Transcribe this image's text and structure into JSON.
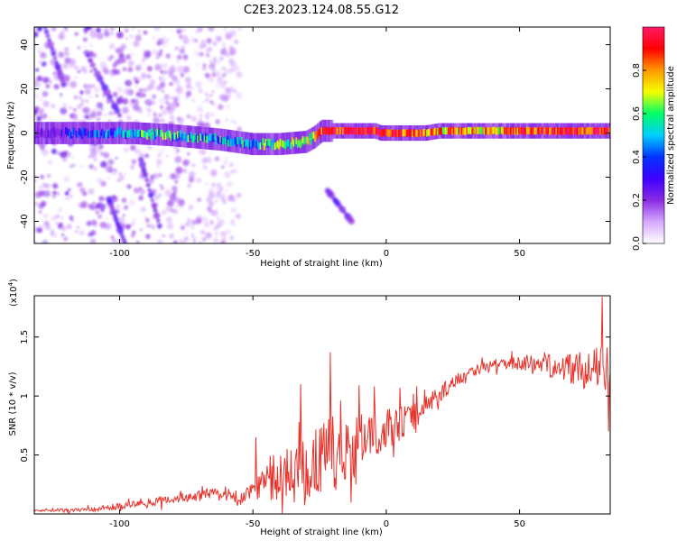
{
  "title": "C2E3.2023.124.08.55.G12",
  "colors": {
    "snr_line": "#e8332c",
    "spectrogram_faint": "#c79bff",
    "spectrogram_core": "#3a00e0",
    "axis": "#000000"
  },
  "chart_data": [
    {
      "type": "heatmap",
      "xlabel": "Height of straight line (km)",
      "ylabel": "Frequency (Hz)",
      "xlim": [
        -132,
        84
      ],
      "ylim": [
        -50,
        48
      ],
      "xticks": [
        -100,
        -50,
        0,
        50
      ],
      "yticks": [
        -40,
        -20,
        0,
        20,
        40
      ],
      "grid": false,
      "colorbar": {
        "label": "Normalized spectral amplitude",
        "range": [
          0.0,
          1.0
        ],
        "ticks": [
          "0.0",
          "0.2",
          "0.4",
          "0.6",
          "0.8"
        ],
        "stops": [
          "#ffffff",
          "#d6a8ff",
          "#8a2be2",
          "#3d00ff",
          "#0033ff",
          "#00cfff",
          "#00ff66",
          "#f5ff00",
          "#ff9900",
          "#ff0000",
          "#ff1a66"
        ]
      },
      "band_center": [
        {
          "x": -132,
          "y": 0
        },
        {
          "x": -112,
          "y": 0
        },
        {
          "x": -95,
          "y": 0
        },
        {
          "x": -80,
          "y": -1
        },
        {
          "x": -62,
          "y": -3
        },
        {
          "x": -50,
          "y": -5
        },
        {
          "x": -40,
          "y": -5
        },
        {
          "x": -30,
          "y": -4
        },
        {
          "x": -27,
          "y": -2
        },
        {
          "x": -24,
          "y": 1
        },
        {
          "x": -10,
          "y": 1
        },
        {
          "x": -4,
          "y": 1
        },
        {
          "x": -2,
          "y": 0
        },
        {
          "x": 15,
          "y": 0
        },
        {
          "x": 20,
          "y": 1
        },
        {
          "x": 84,
          "y": 1
        }
      ],
      "band_intensity": [
        {
          "x": -132,
          "v": 0.15
        },
        {
          "x": -112,
          "v": 0.35
        },
        {
          "x": -95,
          "v": 0.5
        },
        {
          "x": -75,
          "v": 0.55
        },
        {
          "x": -60,
          "v": 0.45
        },
        {
          "x": -45,
          "v": 0.55
        },
        {
          "x": -30,
          "v": 0.6
        },
        {
          "x": -24,
          "v": 0.85
        },
        {
          "x": -10,
          "v": 0.95
        },
        {
          "x": 0,
          "v": 0.95
        },
        {
          "x": 20,
          "v": 0.8
        },
        {
          "x": 40,
          "v": 0.75
        },
        {
          "x": 60,
          "v": 0.9
        },
        {
          "x": 84,
          "v": 0.9
        }
      ],
      "noise_region": {
        "x_from": -132,
        "x_to": -55,
        "amplitude": 0.25
      },
      "streaks": [
        {
          "x": [
            -128,
            -121
          ],
          "y": [
            48,
            22
          ]
        },
        {
          "x": [
            -112,
            -100
          ],
          "y": [
            35,
            8
          ]
        },
        {
          "x": [
            -92,
            -85
          ],
          "y": [
            -12,
            -42
          ]
        },
        {
          "x": [
            -104,
            -98
          ],
          "y": [
            -30,
            -50
          ]
        },
        {
          "x": [
            -22,
            -13
          ],
          "y": [
            -26,
            -40
          ]
        }
      ]
    },
    {
      "type": "line",
      "xlabel": "Height of straight line (km)",
      "ylabel": "SNR (10 * v/v)",
      "y_multiplier": "(x10",
      "y_multiplier_exponent": "4",
      "y_multiplier_close": ")",
      "xlim": [
        -132,
        84
      ],
      "ylim": [
        0,
        1.85
      ],
      "xticks": [
        -100,
        -50,
        0,
        50
      ],
      "yticks": [
        0.5,
        1.0,
        1.5
      ],
      "grid": false,
      "series": [
        {
          "envelope": [
            {
              "x": -132,
              "y": 0.03
            },
            {
              "x": -110,
              "y": 0.04
            },
            {
              "x": -95,
              "y": 0.08
            },
            {
              "x": -80,
              "y": 0.13
            },
            {
              "x": -65,
              "y": 0.17
            },
            {
              "x": -55,
              "y": 0.12
            },
            {
              "x": -48,
              "y": 0.25
            },
            {
              "x": -40,
              "y": 0.3
            },
            {
              "x": -30,
              "y": 0.38
            },
            {
              "x": -20,
              "y": 0.5
            },
            {
              "x": -10,
              "y": 0.6
            },
            {
              "x": 0,
              "y": 0.72
            },
            {
              "x": 10,
              "y": 0.82
            },
            {
              "x": 20,
              "y": 1.02
            },
            {
              "x": 30,
              "y": 1.2
            },
            {
              "x": 40,
              "y": 1.27
            },
            {
              "x": 50,
              "y": 1.28
            },
            {
              "x": 58,
              "y": 1.28
            },
            {
              "x": 65,
              "y": 1.25
            },
            {
              "x": 75,
              "y": 1.22
            },
            {
              "x": 84,
              "y": 1.25
            }
          ],
          "noise": [
            {
              "x": -132,
              "a": 0.01
            },
            {
              "x": -95,
              "a": 0.03
            },
            {
              "x": -70,
              "a": 0.05
            },
            {
              "x": -55,
              "a": 0.06
            },
            {
              "x": -45,
              "a": 0.15
            },
            {
              "x": -30,
              "a": 0.32
            },
            {
              "x": -20,
              "a": 0.33
            },
            {
              "x": -5,
              "a": 0.2
            },
            {
              "x": 10,
              "a": 0.12
            },
            {
              "x": 25,
              "a": 0.06
            },
            {
              "x": 45,
              "a": 0.04
            },
            {
              "x": 55,
              "a": 0.08
            },
            {
              "x": 70,
              "a": 0.14
            },
            {
              "x": 84,
              "a": 0.2
            }
          ],
          "spikes": [
            {
              "x": -49,
              "y": 0.65
            },
            {
              "x": -32,
              "y": 1.1
            },
            {
              "x": -21,
              "y": 1.37
            },
            {
              "x": 5,
              "y": 1.07
            },
            {
              "x": 81,
              "y": 1.84
            },
            {
              "x": 83.5,
              "y": 0.7
            }
          ]
        }
      ]
    }
  ]
}
